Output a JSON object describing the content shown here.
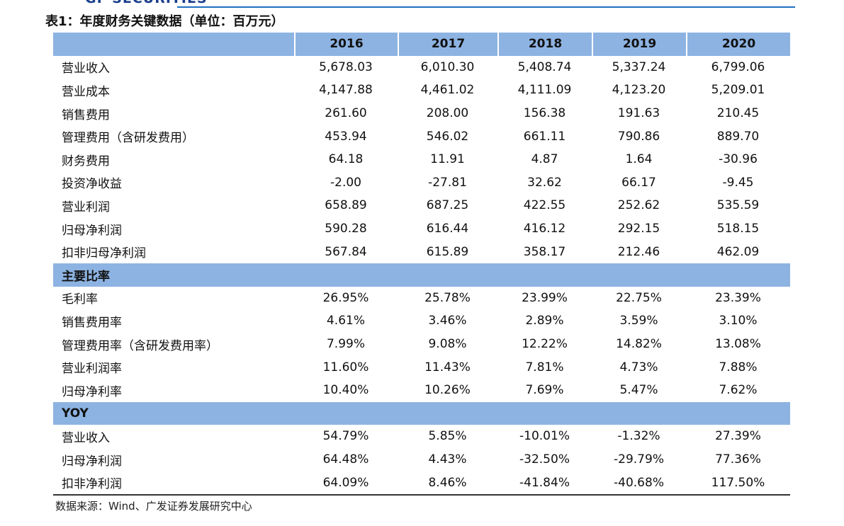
{
  "header": {
    "logo": "GF SECURITIES",
    "title": "表1：年度财务关键数据（单位：百万元）"
  },
  "table": {
    "columns": [
      "2016",
      "2017",
      "2018",
      "2019",
      "2020"
    ],
    "sections": [
      {
        "rows": [
          {
            "label": "营业收入",
            "values": [
              "5,678.03",
              "6,010.30",
              "5,408.74",
              "5,337.24",
              "6,799.06"
            ]
          },
          {
            "label": "营业成本",
            "values": [
              "4,147.88",
              "4,461.02",
              "4,111.09",
              "4,123.20",
              "5,209.01"
            ]
          },
          {
            "label": "销售费用",
            "values": [
              "261.60",
              "208.00",
              "156.38",
              "191.63",
              "210.45"
            ]
          },
          {
            "label": "管理费用（含研发费用）",
            "values": [
              "453.94",
              "546.02",
              "661.11",
              "790.86",
              "889.70"
            ]
          },
          {
            "label": "财务费用",
            "values": [
              "64.18",
              "11.91",
              "4.87",
              "1.64",
              "-30.96"
            ]
          },
          {
            "label": "投资净收益",
            "values": [
              "-2.00",
              "-27.81",
              "32.62",
              "66.17",
              "-9.45"
            ]
          },
          {
            "label": "营业利润",
            "values": [
              "658.89",
              "687.25",
              "422.55",
              "252.62",
              "535.59"
            ]
          },
          {
            "label": "归母净利润",
            "values": [
              "590.28",
              "616.44",
              "416.12",
              "292.15",
              "518.15"
            ]
          },
          {
            "label": "扣非归母净利润",
            "values": [
              "567.84",
              "615.89",
              "358.17",
              "212.46",
              "462.09"
            ]
          }
        ]
      },
      {
        "title": "主要比率",
        "rows": [
          {
            "label": "毛利率",
            "values": [
              "26.95%",
              "25.78%",
              "23.99%",
              "22.75%",
              "23.39%"
            ]
          },
          {
            "label": "销售费用率",
            "values": [
              "4.61%",
              "3.46%",
              "2.89%",
              "3.59%",
              "3.10%"
            ]
          },
          {
            "label": "管理费用率（含研发费用率）",
            "values": [
              "7.99%",
              "9.08%",
              "12.22%",
              "14.82%",
              "13.08%"
            ]
          },
          {
            "label": "营业利润率",
            "values": [
              "11.60%",
              "11.43%",
              "7.81%",
              "4.73%",
              "7.88%"
            ]
          },
          {
            "label": "归母净利率",
            "values": [
              "10.40%",
              "10.26%",
              "7.69%",
              "5.47%",
              "7.62%"
            ]
          }
        ]
      },
      {
        "title": "YOY",
        "rows": [
          {
            "label": "营业收入",
            "values": [
              "54.79%",
              "5.85%",
              "-10.01%",
              "-1.32%",
              "27.39%"
            ]
          },
          {
            "label": "归母净利润",
            "values": [
              "64.48%",
              "4.43%",
              "-32.50%",
              "-29.79%",
              "77.36%"
            ]
          },
          {
            "label": "扣非净利润",
            "values": [
              "64.09%",
              "8.46%",
              "-41.84%",
              "-40.68%",
              "117.50%"
            ]
          }
        ]
      }
    ]
  },
  "footer": {
    "source": "数据来源：Wind、广发证券发展研究中心"
  }
}
